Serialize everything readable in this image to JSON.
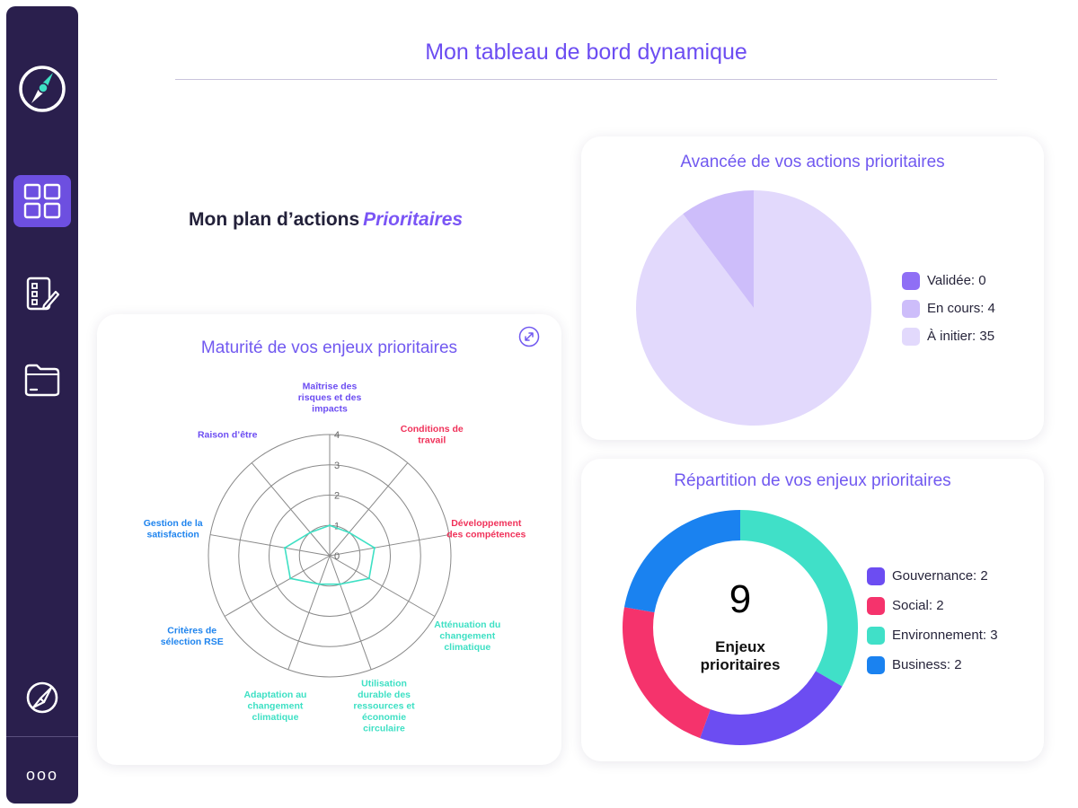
{
  "page": {
    "title": "Mon tableau de bord dynamique",
    "plan_title": "Mon plan d’actions",
    "plan_title_highlight": "Prioritaires"
  },
  "sidebar": {
    "more_label": "ooo",
    "icons": [
      "compass-logo-icon",
      "dashboard-icon",
      "forms-edit-icon",
      "folder-icon",
      "compass-icon"
    ],
    "colors": {
      "background": "#2a1f4d",
      "active": "#6d4fe0",
      "accent": "#3ee0c4"
    }
  },
  "maturity": {
    "title": "Maturité de vos enjeux prioritaires",
    "expand_icon": "expand-icon"
  },
  "advance": {
    "title": "Avancée de vos actions prioritaires"
  },
  "repartition": {
    "title": "Répartition de vos enjeux prioritaires",
    "center_number": "9",
    "center_text_line1": "Enjeux",
    "center_text_line2": "prioritaires"
  },
  "chart_data": [
    {
      "type": "radar",
      "title": "Maturité de vos enjeux prioritaires",
      "rlim": [
        0,
        4
      ],
      "ticks": [
        "0",
        "1",
        "2",
        "3",
        "4"
      ],
      "axes": [
        {
          "lines": [
            "Maîtrise des",
            "risques et des",
            "impacts"
          ],
          "color": "#6c4df2",
          "value": 1
        },
        {
          "lines": [
            "Conditions de",
            "travail"
          ],
          "color": "#f0325a",
          "value": 1
        },
        {
          "lines": [
            "Développement",
            "des compétences"
          ],
          "color": "#f0325a",
          "value": 1.5
        },
        {
          "lines": [
            "Atténuation du",
            "changement",
            "climatique"
          ],
          "color": "#3ee0c4",
          "value": 1.5
        },
        {
          "lines": [
            "Utilisation",
            "durable des",
            "ressources et",
            "économie",
            "circulaire"
          ],
          "color": "#3ee0c4",
          "value": 1
        },
        {
          "lines": [
            "Adaptation au",
            "changement",
            "climatique"
          ],
          "color": "#3ee0c4",
          "value": 1
        },
        {
          "lines": [
            "Critères de",
            "sélection RSE"
          ],
          "color": "#1f84ee",
          "value": 1.5
        },
        {
          "lines": [
            "Gestion de la",
            "satisfaction"
          ],
          "color": "#1f84ee",
          "value": 1.5
        },
        {
          "lines": [
            "Raison d’être"
          ],
          "color": "#6c4df2",
          "value": 1
        }
      ],
      "line_color": "#3ee0c4",
      "grid_color": "#8a8a8a"
    },
    {
      "type": "pie",
      "title": "Avancée de vos actions prioritaires",
      "slices": [
        {
          "label": "Validée: 0",
          "value": 0,
          "color": "#8f6ff5"
        },
        {
          "label": "En cours: 4",
          "value": 4,
          "color": "#cdbdfa"
        },
        {
          "label": "À initier: 35",
          "value": 35,
          "color": "#e2d9fc"
        }
      ]
    },
    {
      "type": "pie",
      "title": "Répartition de vos enjeux prioritaires",
      "donut": true,
      "slices": [
        {
          "label": "Gouvernance: 2",
          "value": 2,
          "color": "#6c4df2"
        },
        {
          "label": "Social: 2",
          "value": 2,
          "color": "#f5336c"
        },
        {
          "label": "Environnement: 3",
          "value": 3,
          "color": "#40e0c8"
        },
        {
          "label": "Business: 2",
          "value": 2,
          "color": "#1a82f0"
        }
      ],
      "draw_order": [
        2,
        0,
        1,
        3
      ]
    }
  ]
}
